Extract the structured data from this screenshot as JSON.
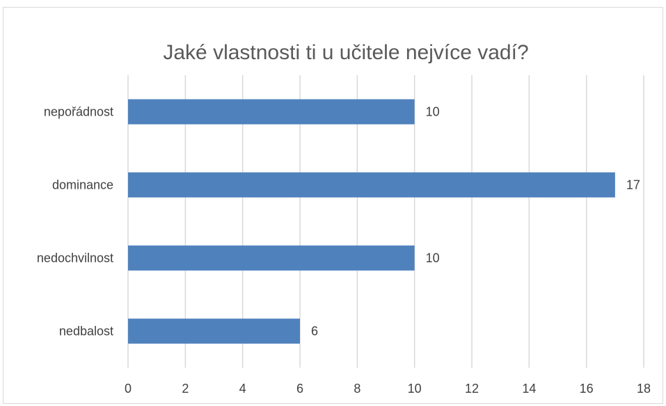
{
  "chart_data": {
    "type": "bar",
    "orientation": "horizontal",
    "title": "Jaké vlastnosti ti u učitele nejvíce vadí?",
    "categories": [
      "nepořádnost",
      "dominance",
      "nedochvilnost",
      "nedbalost"
    ],
    "values": [
      10,
      17,
      10,
      6
    ],
    "xlim": [
      0,
      18
    ],
    "ticks": [
      0,
      2,
      4,
      6,
      8,
      10,
      12,
      14,
      16,
      18
    ],
    "grid": true,
    "data_labels": true,
    "legend": "none",
    "colors": {
      "bar": "#4f81bd",
      "grid": "#d9d9d9",
      "text": "#404040",
      "title": "#595959"
    }
  }
}
